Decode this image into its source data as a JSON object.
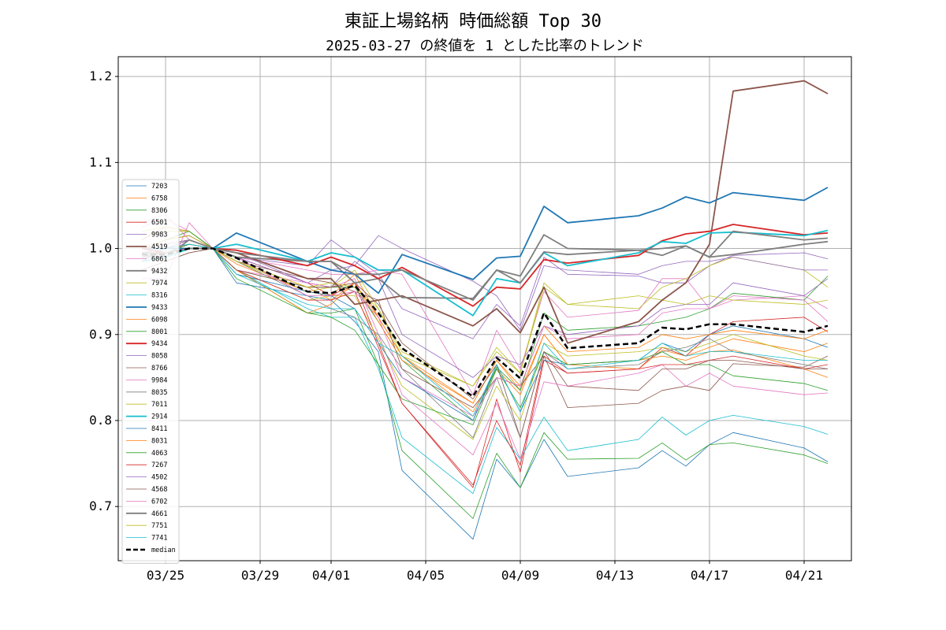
{
  "chart_data": {
    "type": "line",
    "title": "東証上場銘柄 時価総額 Top 30",
    "subtitle": "2025-03-27 の終値を 1 とした比率のトレンド",
    "xlabel": "",
    "ylabel": "",
    "x": [
      "2025-03-24",
      "2025-03-25",
      "2025-03-26",
      "2025-03-27",
      "2025-03-28",
      "2025-03-31",
      "2025-04-01",
      "2025-04-02",
      "2025-04-03",
      "2025-04-04",
      "2025-04-07",
      "2025-04-08",
      "2025-04-09",
      "2025-04-10",
      "2025-04-11",
      "2025-04-14",
      "2025-04-15",
      "2025-04-16",
      "2025-04-17",
      "2025-04-18",
      "2025-04-21",
      "2025-04-22"
    ],
    "xticks": [
      "2025-03-25",
      "2025-03-29",
      "2025-04-01",
      "2025-04-05",
      "2025-04-09",
      "2025-04-13",
      "2025-04-17",
      "2025-04-21"
    ],
    "xtick_labels": [
      "03/25",
      "03/29",
      "04/01",
      "04/05",
      "04/09",
      "04/13",
      "04/17",
      "04/21"
    ],
    "xlim": [
      "2025-03-23",
      "2025-04-23"
    ],
    "yticks": [
      0.7,
      0.8,
      0.9,
      1.0,
      1.1,
      1.2
    ],
    "ytick_labels": [
      "0.7",
      "0.8",
      "0.9",
      "1.0",
      "1.1",
      "1.2"
    ],
    "ylim": [
      0.637,
      1.223
    ],
    "grid": true,
    "legend_position": "left",
    "series": [
      {
        "name": "7203",
        "color": "#1f77b4",
        "width": 0.8,
        "values": [
          0.99,
          0.995,
          1.005,
          1.0,
          0.96,
          0.945,
          0.94,
          0.915,
          0.88,
          0.742,
          0.662,
          0.755,
          0.722,
          0.778,
          0.735,
          0.745,
          0.765,
          0.747,
          0.772,
          0.786,
          0.768,
          0.752
        ]
      },
      {
        "name": "6758",
        "color": "#ff7f0e",
        "width": 0.8,
        "values": [
          0.995,
          1.0,
          1.005,
          1.0,
          0.982,
          0.95,
          0.945,
          0.97,
          0.92,
          0.875,
          0.81,
          0.86,
          0.83,
          0.9,
          0.865,
          0.86,
          0.882,
          0.875,
          0.885,
          0.895,
          0.88,
          0.89
        ]
      },
      {
        "name": "8306",
        "color": "#2ca02c",
        "width": 0.8,
        "values": [
          0.985,
          1.0,
          1.01,
          1.0,
          0.975,
          0.925,
          0.925,
          0.93,
          0.865,
          0.765,
          0.686,
          0.762,
          0.722,
          0.786,
          0.755,
          0.756,
          0.774,
          0.754,
          0.772,
          0.774,
          0.76,
          0.75
        ]
      },
      {
        "name": "6501",
        "color": "#d62728",
        "width": 0.8,
        "values": [
          1.01,
          1.025,
          1.02,
          1.0,
          0.99,
          0.96,
          0.945,
          0.96,
          0.89,
          0.82,
          0.722,
          0.825,
          0.74,
          0.87,
          0.855,
          0.86,
          0.885,
          0.875,
          0.9,
          0.915,
          0.92,
          0.903
        ]
      },
      {
        "name": "9983",
        "color": "#9467bd",
        "width": 0.8,
        "values": [
          1.0,
          1.01,
          1.015,
          1.0,
          0.99,
          0.98,
          1.01,
          0.99,
          0.97,
          0.93,
          0.895,
          0.935,
          0.91,
          0.99,
          0.97,
          0.968,
          0.96,
          0.96,
          0.98,
          0.992,
          0.995,
          0.988
        ]
      },
      {
        "name": "4519",
        "color": "#8c564b",
        "width": 1.8,
        "values": [
          0.995,
          0.995,
          1.0,
          1.0,
          0.995,
          0.965,
          0.965,
          0.935,
          0.94,
          0.945,
          0.91,
          0.93,
          0.902,
          0.955,
          0.89,
          0.915,
          0.94,
          0.96,
          1.005,
          1.183,
          1.195,
          1.18
        ]
      },
      {
        "name": "6861",
        "color": "#e377c2",
        "width": 0.8,
        "values": [
          1.025,
          1.035,
          1.02,
          1.0,
          0.99,
          0.975,
          0.97,
          0.97,
          0.975,
          0.97,
          0.83,
          0.905,
          0.86,
          0.95,
          0.92,
          0.928,
          0.965,
          0.965,
          0.93,
          0.94,
          0.945,
          0.93
        ]
      },
      {
        "name": "9432",
        "color": "#7f7f7f",
        "width": 1.8,
        "values": [
          0.99,
          0.99,
          1.01,
          1.0,
          0.99,
          0.985,
          0.985,
          0.96,
          0.965,
          0.943,
          0.942,
          0.975,
          0.968,
          1.016,
          1.0,
          0.998,
          0.992,
          1.003,
          0.99,
          0.993,
          1.005,
          1.008
        ]
      },
      {
        "name": "7974",
        "color": "#bcbd22",
        "width": 0.8,
        "values": [
          1.02,
          1.025,
          1.02,
          1.0,
          0.985,
          0.95,
          0.955,
          0.975,
          0.93,
          0.88,
          0.84,
          0.88,
          0.855,
          0.96,
          0.935,
          0.93,
          0.955,
          0.965,
          0.98,
          0.99,
          0.975,
          0.955
        ]
      },
      {
        "name": "8316",
        "color": "#17becf",
        "width": 0.8,
        "values": [
          0.985,
          1.0,
          1.01,
          1.0,
          0.975,
          0.93,
          0.92,
          0.92,
          0.86,
          0.78,
          0.715,
          0.792,
          0.755,
          0.804,
          0.765,
          0.778,
          0.804,
          0.783,
          0.8,
          0.806,
          0.793,
          0.784
        ]
      },
      {
        "name": "9433",
        "color": "#1f77b4",
        "width": 1.8,
        "values": [
          1.0,
          1.0,
          1.0,
          1.0,
          1.018,
          0.985,
          0.975,
          0.97,
          0.948,
          0.993,
          0.964,
          0.989,
          0.991,
          1.049,
          1.03,
          1.038,
          1.047,
          1.06,
          1.053,
          1.065,
          1.056,
          1.071
        ]
      },
      {
        "name": "6098",
        "color": "#ff7f0e",
        "width": 0.8,
        "values": [
          0.99,
          0.995,
          1.005,
          1.0,
          0.985,
          0.955,
          0.94,
          0.96,
          0.92,
          0.875,
          0.82,
          0.87,
          0.835,
          0.9,
          0.865,
          0.87,
          0.875,
          0.87,
          0.88,
          0.882,
          0.86,
          0.85
        ]
      },
      {
        "name": "8001",
        "color": "#2ca02c",
        "width": 0.8,
        "values": [
          0.99,
          0.995,
          1.005,
          1.0,
          0.975,
          0.955,
          0.955,
          0.955,
          0.915,
          0.87,
          0.8,
          0.862,
          0.835,
          0.925,
          0.905,
          0.91,
          0.915,
          0.92,
          0.93,
          0.948,
          0.94,
          0.968
        ]
      },
      {
        "name": "9434",
        "color": "#d62728",
        "width": 1.8,
        "values": [
          1.0,
          0.995,
          1.0,
          1.0,
          0.998,
          0.98,
          0.99,
          0.98,
          0.965,
          0.978,
          0.933,
          0.955,
          0.953,
          0.987,
          0.983,
          0.992,
          1.009,
          1.017,
          1.02,
          1.028,
          1.016,
          1.018
        ]
      },
      {
        "name": "8058",
        "color": "#9467bd",
        "width": 0.8,
        "values": [
          0.995,
          1.0,
          1.01,
          1.0,
          0.99,
          0.96,
          0.955,
          0.985,
          0.965,
          0.9,
          0.85,
          0.875,
          0.865,
          0.91,
          0.9,
          0.91,
          0.93,
          0.935,
          0.935,
          0.96,
          0.945,
          0.965
        ]
      },
      {
        "name": "8766",
        "color": "#8c564b",
        "width": 0.8,
        "values": [
          0.975,
          0.985,
          0.995,
          1.0,
          0.985,
          0.965,
          0.96,
          0.95,
          0.94,
          0.86,
          0.815,
          0.85,
          0.84,
          0.875,
          0.815,
          0.82,
          0.835,
          0.84,
          0.835,
          0.866,
          0.862,
          0.875
        ]
      },
      {
        "name": "9984",
        "color": "#e377c2",
        "width": 0.8,
        "values": [
          1.03,
          1.04,
          1.01,
          1.0,
          0.975,
          0.96,
          0.955,
          0.965,
          0.9,
          0.83,
          0.76,
          0.82,
          0.755,
          0.845,
          0.84,
          0.855,
          0.865,
          0.84,
          0.855,
          0.84,
          0.83,
          0.832
        ]
      },
      {
        "name": "8035",
        "color": "#7f7f7f",
        "width": 0.8,
        "values": [
          1.0,
          1.005,
          1.01,
          1.0,
          0.985,
          0.945,
          0.93,
          0.92,
          0.9,
          0.86,
          0.78,
          0.85,
          0.78,
          0.88,
          0.86,
          0.865,
          0.88,
          0.885,
          0.895,
          0.88,
          0.865,
          0.86
        ]
      },
      {
        "name": "7011",
        "color": "#bcbd22",
        "width": 0.8,
        "values": [
          1.015,
          1.02,
          1.02,
          1.0,
          0.975,
          0.94,
          0.945,
          0.945,
          0.895,
          0.84,
          0.778,
          0.84,
          0.8,
          0.89,
          0.875,
          0.88,
          0.885,
          0.88,
          0.89,
          0.9,
          0.875,
          0.87
        ]
      },
      {
        "name": "2914",
        "color": "#17becf",
        "width": 1.8,
        "values": [
          0.985,
          0.99,
          1.0,
          1.0,
          1.005,
          0.985,
          0.995,
          0.99,
          0.975,
          0.975,
          0.922,
          0.965,
          0.96,
          0.995,
          0.98,
          0.995,
          1.008,
          1.006,
          1.018,
          1.019,
          1.015,
          1.021
        ]
      },
      {
        "name": "8411",
        "color": "#1f77b4",
        "width": 0.8,
        "values": [
          0.99,
          1.0,
          1.005,
          1.0,
          0.97,
          0.95,
          0.945,
          0.93,
          0.89,
          0.85,
          0.8,
          0.865,
          0.81,
          0.87,
          0.865,
          0.87,
          0.89,
          0.88,
          0.9,
          0.91,
          0.895,
          0.885
        ]
      },
      {
        "name": "8031",
        "color": "#ff7f0e",
        "width": 0.8,
        "values": [
          1.0,
          1.005,
          1.01,
          1.0,
          0.975,
          0.925,
          0.935,
          0.96,
          0.915,
          0.87,
          0.82,
          0.87,
          0.84,
          0.91,
          0.88,
          0.885,
          0.9,
          0.895,
          0.9,
          0.905,
          0.895,
          0.905
        ]
      },
      {
        "name": "4063",
        "color": "#2ca02c",
        "width": 0.8,
        "values": [
          1.0,
          1.01,
          1.02,
          1.0,
          0.965,
          0.925,
          0.92,
          0.905,
          0.865,
          0.825,
          0.795,
          0.86,
          0.815,
          0.88,
          0.865,
          0.87,
          0.88,
          0.865,
          0.865,
          0.852,
          0.843,
          0.835
        ]
      },
      {
        "name": "7267",
        "color": "#d62728",
        "width": 0.8,
        "values": [
          1.0,
          1.01,
          1.015,
          1.0,
          0.975,
          0.94,
          0.94,
          0.95,
          0.885,
          0.82,
          0.725,
          0.8,
          0.748,
          0.875,
          0.855,
          0.86,
          0.865,
          0.865,
          0.87,
          0.875,
          0.86,
          0.865
        ]
      },
      {
        "name": "4502",
        "color": "#9467bd",
        "width": 0.8,
        "values": [
          1.0,
          1.005,
          1.01,
          1.0,
          0.995,
          0.96,
          0.975,
          0.98,
          1.015,
          1.0,
          0.962,
          0.945,
          0.905,
          0.98,
          0.975,
          0.97,
          0.98,
          0.985,
          0.985,
          0.99,
          0.975,
          0.975
        ]
      },
      {
        "name": "4568",
        "color": "#8c564b",
        "width": 0.8,
        "values": [
          0.975,
          0.985,
          0.995,
          1.0,
          0.975,
          0.955,
          0.955,
          0.96,
          0.935,
          0.89,
          0.825,
          0.865,
          0.78,
          0.88,
          0.84,
          0.835,
          0.86,
          0.86,
          0.87,
          0.87,
          0.86,
          0.86
        ]
      },
      {
        "name": "6702",
        "color": "#e377c2",
        "width": 0.8,
        "values": [
          0.965,
          0.965,
          1.03,
          1.0,
          0.99,
          0.945,
          0.945,
          0.95,
          0.92,
          0.85,
          0.805,
          0.85,
          0.84,
          0.91,
          0.895,
          0.9,
          0.925,
          0.93,
          0.93,
          0.945,
          0.94,
          0.915
        ]
      },
      {
        "name": "4661",
        "color": "#7f7f7f",
        "width": 1.8,
        "values": [
          0.99,
          0.995,
          1.0,
          1.0,
          0.995,
          0.985,
          0.985,
          0.97,
          0.97,
          0.975,
          0.94,
          0.975,
          0.96,
          0.996,
          0.993,
          0.998,
          1.0,
          1.003,
          0.99,
          1.02,
          1.01,
          1.012
        ]
      },
      {
        "name": "7751",
        "color": "#bcbd22",
        "width": 0.8,
        "values": [
          1.0,
          1.01,
          1.015,
          1.0,
          0.985,
          0.955,
          0.96,
          0.955,
          0.93,
          0.875,
          0.84,
          0.885,
          0.855,
          0.955,
          0.935,
          0.945,
          0.94,
          0.935,
          0.945,
          0.94,
          0.935,
          0.94
        ]
      },
      {
        "name": "7741",
        "color": "#17becf",
        "width": 0.8,
        "values": [
          0.995,
          1.0,
          1.005,
          1.0,
          0.97,
          0.935,
          0.93,
          0.93,
          0.89,
          0.875,
          0.805,
          0.865,
          0.81,
          0.89,
          0.86,
          0.87,
          0.89,
          0.875,
          0.88,
          0.88,
          0.87,
          0.87
        ]
      },
      {
        "name": "median",
        "color": "#000000",
        "width": 2.5,
        "dashed": true,
        "values": [
          0.993,
          0.993,
          1.0,
          1.0,
          0.989,
          0.95,
          0.948,
          0.957,
          0.925,
          0.884,
          0.828,
          0.873,
          0.849,
          0.925,
          0.884,
          0.89,
          0.908,
          0.906,
          0.912,
          0.912,
          0.903,
          0.91
        ]
      }
    ]
  }
}
